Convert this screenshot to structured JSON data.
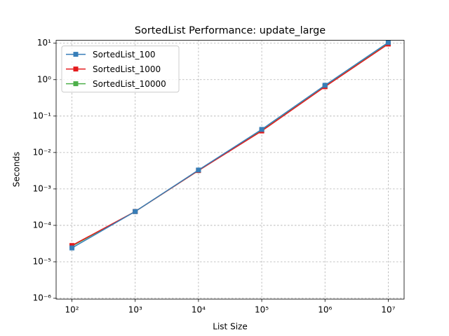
{
  "chart_data": {
    "type": "line",
    "title": "SortedList Performance: update_large",
    "xlabel": "List Size",
    "ylabel": "Seconds",
    "x": [
      100,
      1000,
      10000,
      100000,
      1000000,
      10000000
    ],
    "series": [
      {
        "name": "SortedList_100",
        "color": "#377eb8",
        "values": [
          2.4e-05,
          0.00024,
          0.0033,
          0.043,
          0.7,
          10.5
        ]
      },
      {
        "name": "SortedList_1000",
        "color": "#e41a1c",
        "values": [
          2.8e-05,
          0.00024,
          0.0032,
          0.039,
          0.64,
          9.5
        ]
      },
      {
        "name": "SortedList_10000",
        "color": "#4daf4a",
        "values": [
          2.7e-05,
          0.00024,
          0.0032,
          0.04,
          0.65,
          9.8
        ]
      }
    ],
    "xscale": "log",
    "yscale": "log",
    "xlim": [
      56.2,
      17800000
    ],
    "ylim": [
      9.5e-07,
      12
    ],
    "xticks": [
      {
        "value": 100,
        "label": "10²"
      },
      {
        "value": 1000,
        "label": "10³"
      },
      {
        "value": 10000,
        "label": "10⁴"
      },
      {
        "value": 100000,
        "label": "10⁵"
      },
      {
        "value": 1000000,
        "label": "10⁶"
      },
      {
        "value": 10000000,
        "label": "10⁷"
      }
    ],
    "yticks": [
      {
        "value": 1e-06,
        "label": "10⁻⁶"
      },
      {
        "value": 1e-05,
        "label": "10⁻⁵"
      },
      {
        "value": 0.0001,
        "label": "10⁻⁴"
      },
      {
        "value": 0.001,
        "label": "10⁻³"
      },
      {
        "value": 0.01,
        "label": "10⁻²"
      },
      {
        "value": 0.1,
        "label": "10⁻¹"
      },
      {
        "value": 1,
        "label": "10⁰"
      },
      {
        "value": 10,
        "label": "10¹"
      }
    ],
    "grid": true,
    "legend": "upper left"
  }
}
